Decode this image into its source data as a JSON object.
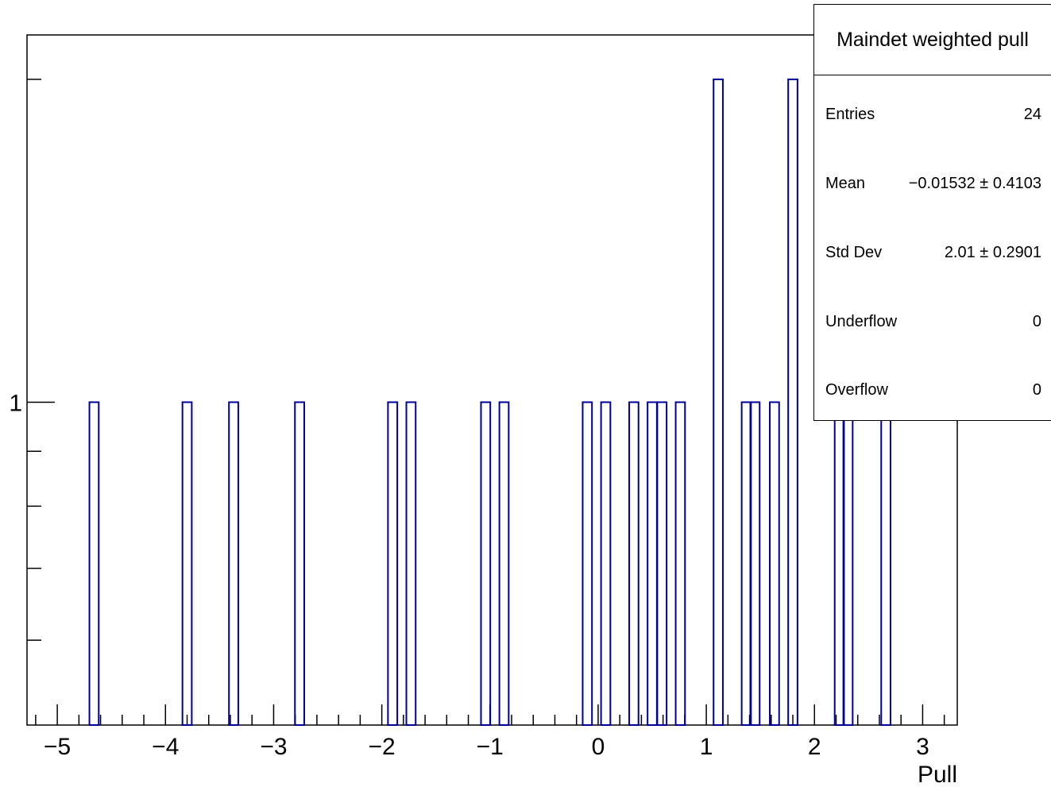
{
  "chart_data": {
    "type": "bar",
    "title": "",
    "xlabel": "Pull",
    "ylabel": "",
    "xlim": [
      -5.28,
      3.32
    ],
    "ylim": [
      0.5,
      2.2
    ],
    "y_scale": "log",
    "grid": false,
    "legend": "none",
    "line_color": "#000099",
    "bin_width": 0.086,
    "x_ticks": [
      "−5",
      "−4",
      "−3",
      "−2",
      "−1",
      "0",
      "1",
      "2",
      "3"
    ],
    "y_tick_labels": [
      "1"
    ],
    "bins": [
      {
        "x": -4.66,
        "count": 1
      },
      {
        "x": -3.8,
        "count": 1
      },
      {
        "x": -3.37,
        "count": 1
      },
      {
        "x": -2.76,
        "count": 1
      },
      {
        "x": -1.9,
        "count": 1
      },
      {
        "x": -1.73,
        "count": 1
      },
      {
        "x": -1.04,
        "count": 1
      },
      {
        "x": -0.87,
        "count": 1
      },
      {
        "x": -0.1,
        "count": 1
      },
      {
        "x": 0.07,
        "count": 1
      },
      {
        "x": 0.33,
        "count": 1
      },
      {
        "x": 0.5,
        "count": 1
      },
      {
        "x": 0.59,
        "count": 1
      },
      {
        "x": 0.76,
        "count": 1
      },
      {
        "x": 1.11,
        "count": 2
      },
      {
        "x": 1.37,
        "count": 1
      },
      {
        "x": 1.45,
        "count": 1
      },
      {
        "x": 1.63,
        "count": 1
      },
      {
        "x": 1.8,
        "count": 2
      },
      {
        "x": 2.23,
        "count": 1
      },
      {
        "x": 2.31,
        "count": 1
      },
      {
        "x": 2.66,
        "count": 1
      }
    ]
  },
  "stats": {
    "title": "Maindet weighted pull",
    "rows": [
      {
        "label": "Entries",
        "value": "24"
      },
      {
        "label": "Mean",
        "value": "−0.01532 ± 0.4103"
      },
      {
        "label": "Std Dev",
        "value": "2.01 ± 0.2901"
      },
      {
        "label": "Underflow",
        "value": "0"
      },
      {
        "label": "Overflow",
        "value": "0"
      }
    ]
  }
}
